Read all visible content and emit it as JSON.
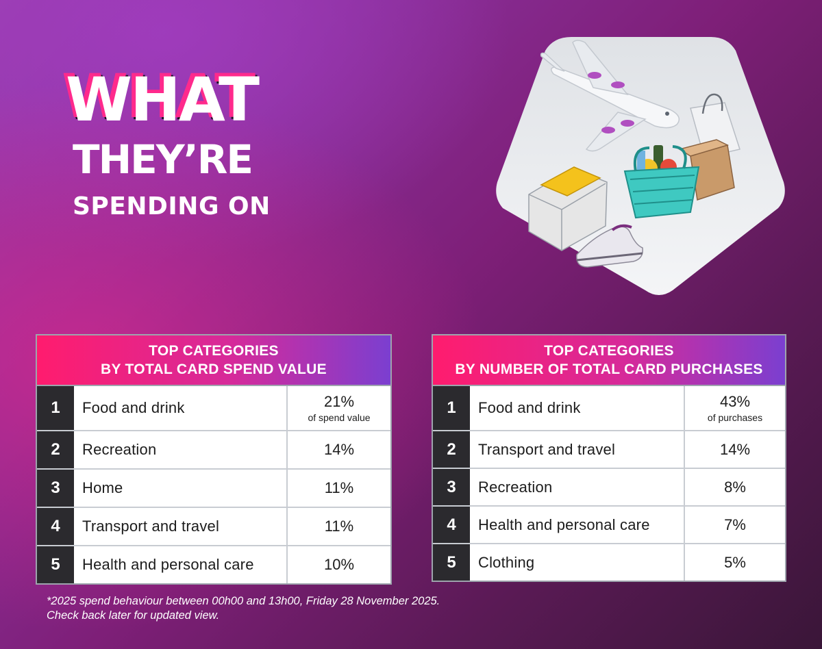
{
  "title": {
    "line1": "WHAT",
    "line2": "THEY’RE",
    "line3": "SPENDING ON"
  },
  "illustration": {
    "icons": [
      "airplane-icon",
      "shopping-bag-icon",
      "shopping-basket-icon",
      "clothing-box-icon",
      "parcel-box-icon",
      "sneakers-icon"
    ]
  },
  "tables": [
    {
      "heading_line1": "TOP CATEGORIES",
      "heading_line2": "BY TOTAL CARD SPEND VALUE",
      "rows": [
        {
          "rank": "1",
          "category": "Food and drink",
          "value": "21%",
          "note": "of spend value"
        },
        {
          "rank": "2",
          "category": "Recreation",
          "value": "14%"
        },
        {
          "rank": "3",
          "category": "Home",
          "value": "11%"
        },
        {
          "rank": "4",
          "category": "Transport and travel",
          "value": "11%"
        },
        {
          "rank": "5",
          "category": "Health and personal care",
          "value": "10%"
        }
      ]
    },
    {
      "heading_line1": "TOP CATEGORIES",
      "heading_line2": "BY NUMBER OF TOTAL CARD PURCHASES",
      "rows": [
        {
          "rank": "1",
          "category": "Food and drink",
          "value": "43%",
          "note": "of purchases"
        },
        {
          "rank": "2",
          "category": "Transport and travel",
          "value": "14%"
        },
        {
          "rank": "3",
          "category": "Recreation",
          "value": "8%"
        },
        {
          "rank": "4",
          "category": "Health and personal care",
          "value": "7%"
        },
        {
          "rank": "5",
          "category": "Clothing",
          "value": "5%"
        }
      ]
    }
  ],
  "footnote": {
    "line1": "*2025 spend behaviour between 00h00 and 13h00, Friday 28 November 2025.",
    "line2": "Check back later for updated view."
  },
  "colors": {
    "header_gradient_start": "#ff1c6e",
    "header_gradient_end": "#7b3fd0",
    "rank_cell": "#2b2a2e",
    "title_shadow": "#ff2a8c"
  }
}
